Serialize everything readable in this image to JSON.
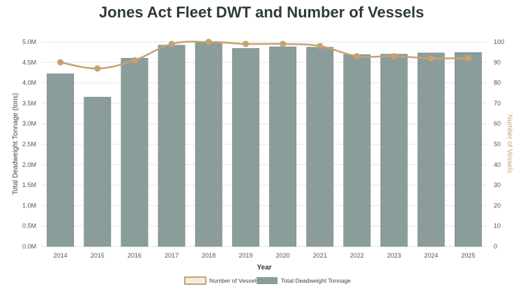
{
  "chart_data": {
    "type": "bar",
    "title": "Jones Act Fleet DWT and Number of Vessels",
    "xlabel": "Year",
    "ylabel_left": "Total Deadweight Tonnage (tons)",
    "ylabel_right": "Number of Vessels",
    "categories": [
      "2014",
      "2015",
      "2016",
      "2017",
      "2018",
      "2019",
      "2020",
      "2021",
      "2022",
      "2023",
      "2024",
      "2025"
    ],
    "series": [
      {
        "name": "Total Deadweight Tonnage",
        "type": "bar",
        "axis": "left",
        "color": "#8a9d9b",
        "values": [
          4220000,
          3650000,
          4600000,
          4920000,
          5000000,
          4840000,
          4880000,
          4870000,
          4690000,
          4700000,
          4730000,
          4740000
        ]
      },
      {
        "name": "Number of Vessels",
        "type": "line",
        "axis": "right",
        "color": "#c8a26e",
        "values": [
          90,
          87,
          91,
          99,
          100,
          99,
          99,
          98,
          93,
          93,
          92,
          92
        ]
      }
    ],
    "ylim_left": [
      0,
      5000000
    ],
    "yticks_left": [
      "0.0M",
      "0.5M",
      "1.0M",
      "1.5M",
      "2.0M",
      "2.5M",
      "3.0M",
      "3.5M",
      "4.0M",
      "4.5M",
      "5.0M"
    ],
    "ylim_right": [
      0,
      100
    ],
    "yticks_right": [
      "0",
      "10",
      "20",
      "30",
      "40",
      "50",
      "60",
      "70",
      "80",
      "90",
      "100"
    ],
    "grid": true,
    "legend_position": "bottom",
    "legend": [
      "Number of Vessels",
      "Total Deadweight Tonnage"
    ]
  }
}
